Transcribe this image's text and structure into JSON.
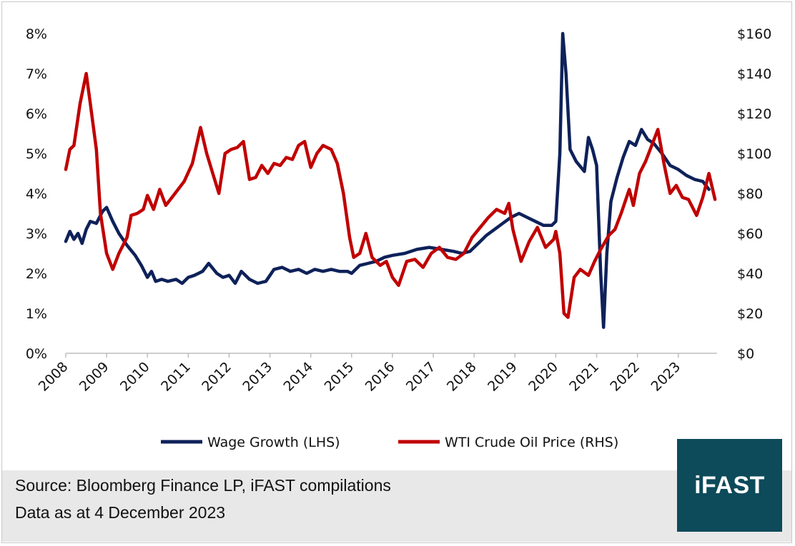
{
  "chart_data": {
    "type": "line",
    "title": "",
    "x_unit": "year",
    "x_ticks": [
      "2008",
      "2009",
      "2010",
      "2011",
      "2012",
      "2013",
      "2014",
      "2015",
      "2016",
      "2017",
      "2018",
      "2019",
      "2020",
      "2021",
      "2022",
      "2023"
    ],
    "xlim": [
      2008,
      2023.95
    ],
    "y_left": {
      "label": "",
      "ylim": [
        0,
        8
      ],
      "ticks": [
        "0%",
        "1%",
        "2%",
        "3%",
        "4%",
        "5%",
        "6%",
        "7%",
        "8%"
      ]
    },
    "y_right": {
      "label": "",
      "ylim": [
        0,
        160
      ],
      "ticks": [
        "$0",
        "$20",
        "$40",
        "$60",
        "$80",
        "$100",
        "$120",
        "$140",
        "$160"
      ]
    },
    "series": [
      {
        "name": "Wage Growth (LHS)",
        "axis": "left",
        "color": "#0e2159",
        "x": [
          2008.0,
          2008.1,
          2008.2,
          2008.3,
          2008.4,
          2008.5,
          2008.6,
          2008.75,
          2008.9,
          2009.0,
          2009.15,
          2009.3,
          2009.5,
          2009.7,
          2009.85,
          2010.0,
          2010.1,
          2010.2,
          2010.35,
          2010.5,
          2010.7,
          2010.85,
          2011.0,
          2011.15,
          2011.35,
          2011.5,
          2011.7,
          2011.85,
          2012.0,
          2012.15,
          2012.3,
          2012.5,
          2012.7,
          2012.9,
          2013.1,
          2013.3,
          2013.5,
          2013.7,
          2013.9,
          2014.1,
          2014.3,
          2014.5,
          2014.7,
          2014.9,
          2015.0,
          2015.2,
          2015.4,
          2015.6,
          2015.8,
          2016.0,
          2016.3,
          2016.6,
          2016.9,
          2017.2,
          2017.5,
          2017.7,
          2017.9,
          2018.1,
          2018.3,
          2018.5,
          2018.7,
          2018.9,
          2019.1,
          2019.3,
          2019.5,
          2019.7,
          2019.9,
          2020.0,
          2020.1,
          2020.17,
          2020.25,
          2020.35,
          2020.5,
          2020.7,
          2020.8,
          2020.9,
          2021.0,
          2021.1,
          2021.17,
          2021.25,
          2021.35,
          2021.5,
          2021.65,
          2021.8,
          2021.95,
          2022.1,
          2022.25,
          2022.4,
          2022.6,
          2022.8,
          2023.0,
          2023.2,
          2023.4,
          2023.6,
          2023.75
        ],
        "y": [
          2.8,
          3.05,
          2.85,
          3.0,
          2.75,
          3.1,
          3.3,
          3.25,
          3.55,
          3.65,
          3.3,
          3.0,
          2.7,
          2.45,
          2.2,
          1.9,
          2.05,
          1.8,
          1.85,
          1.8,
          1.85,
          1.75,
          1.9,
          1.95,
          2.05,
          2.25,
          2.0,
          1.9,
          1.95,
          1.75,
          2.05,
          1.85,
          1.75,
          1.8,
          2.1,
          2.15,
          2.05,
          2.1,
          2.0,
          2.1,
          2.05,
          2.1,
          2.05,
          2.05,
          2.0,
          2.2,
          2.25,
          2.3,
          2.4,
          2.45,
          2.5,
          2.6,
          2.65,
          2.6,
          2.55,
          2.5,
          2.55,
          2.75,
          2.95,
          3.1,
          3.25,
          3.4,
          3.5,
          3.4,
          3.3,
          3.2,
          3.2,
          3.3,
          5.0,
          8.0,
          7.0,
          5.1,
          4.8,
          4.55,
          5.4,
          5.1,
          4.7,
          2.0,
          0.65,
          2.5,
          3.8,
          4.4,
          4.9,
          5.3,
          5.2,
          5.6,
          5.35,
          5.25,
          5.0,
          4.7,
          4.6,
          4.45,
          4.35,
          4.3,
          4.1
        ]
      },
      {
        "name": "WTI Crude Oil Price (RHS)",
        "axis": "right",
        "color": "#c00000",
        "x": [
          2008.0,
          2008.1,
          2008.2,
          2008.35,
          2008.5,
          2008.6,
          2008.75,
          2008.85,
          2009.0,
          2009.15,
          2009.3,
          2009.5,
          2009.6,
          2009.75,
          2009.9,
          2010.0,
          2010.15,
          2010.3,
          2010.45,
          2010.6,
          2010.75,
          2010.9,
          2011.1,
          2011.3,
          2011.45,
          2011.6,
          2011.75,
          2011.9,
          2012.05,
          2012.2,
          2012.35,
          2012.5,
          2012.65,
          2012.8,
          2012.95,
          2013.1,
          2013.25,
          2013.4,
          2013.55,
          2013.7,
          2013.85,
          2014.0,
          2014.15,
          2014.3,
          2014.5,
          2014.65,
          2014.8,
          2014.95,
          2015.05,
          2015.2,
          2015.35,
          2015.5,
          2015.7,
          2015.85,
          2016.0,
          2016.15,
          2016.35,
          2016.55,
          2016.75,
          2016.95,
          2017.15,
          2017.35,
          2017.55,
          2017.75,
          2017.95,
          2018.15,
          2018.35,
          2018.55,
          2018.75,
          2018.85,
          2018.95,
          2019.15,
          2019.35,
          2019.55,
          2019.75,
          2019.95,
          2020.0,
          2020.1,
          2020.2,
          2020.3,
          2020.45,
          2020.6,
          2020.8,
          2020.95,
          2021.1,
          2021.3,
          2021.45,
          2021.6,
          2021.8,
          2021.9,
          2022.05,
          2022.2,
          2022.35,
          2022.5,
          2022.65,
          2022.8,
          2022.95,
          2023.1,
          2023.25,
          2023.45,
          2023.6,
          2023.75,
          2023.9
        ],
        "y": [
          92,
          102,
          104,
          125,
          140,
          125,
          102,
          70,
          50,
          42,
          50,
          58,
          69,
          70,
          72,
          79,
          72,
          82,
          74,
          78,
          82,
          86,
          95,
          113,
          100,
          90,
          80,
          100,
          102,
          103,
          106,
          87,
          88,
          94,
          90,
          95,
          94,
          98,
          97,
          104,
          106,
          93,
          100,
          104,
          102,
          95,
          80,
          58,
          48,
          50,
          60,
          48,
          44,
          46,
          38,
          34,
          46,
          47,
          43,
          50,
          53,
          48,
          47,
          50,
          58,
          63,
          68,
          72,
          70,
          75,
          62,
          46,
          56,
          63,
          53,
          57,
          61,
          50,
          20,
          18,
          38,
          42,
          39,
          46,
          52,
          59,
          62,
          70,
          82,
          74,
          90,
          96,
          104,
          112,
          95,
          80,
          84,
          78,
          77,
          69,
          78,
          90,
          77
        ]
      }
    ]
  },
  "legend": {
    "wage_label": "Wage Growth (LHS)",
    "oil_label": "WTI Crude Oil Price (RHS)"
  },
  "footer": {
    "source": "Source: Bloomberg Finance LP, iFAST compilations",
    "date": "Data as at 4 December 2023"
  },
  "logo": {
    "text": "iFAST"
  }
}
